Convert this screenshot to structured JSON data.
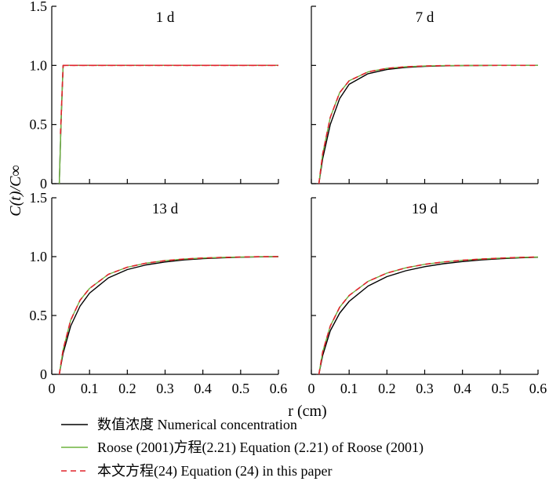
{
  "chart_data": {
    "type": "line",
    "layout": "2x2 panels",
    "xlabel": "r (cm)",
    "ylabel": "C(t)/C∞",
    "xlim": [
      0,
      0.6
    ],
    "ylim": [
      0,
      1.5
    ],
    "xticks": [
      0,
      0.1,
      0.2,
      0.3,
      0.4,
      0.5,
      0.6
    ],
    "xtick_labels": [
      "0",
      "0.1",
      "0.2",
      "0.3",
      "0.4",
      "0.5",
      "0.6"
    ],
    "yticks": [
      0,
      0.5,
      1.0,
      1.5
    ],
    "ytick_labels": [
      "0",
      "0.5",
      "1.0",
      "1.5"
    ],
    "grid": false,
    "legend_position": "bottom",
    "legend": [
      {
        "label": "数值浓度 Numerical concentration",
        "color": "#000000",
        "style": "solid"
      },
      {
        "label": "Roose (2001)方程(2.21) Equation (2.21) of Roose (2001)",
        "color": "#6db33f",
        "style": "solid"
      },
      {
        "label": "本文方程(24) Equation (24) in this paper",
        "color": "#e0242c",
        "style": "dashed"
      }
    ],
    "panels": [
      {
        "title": "1 d",
        "series": [
          {
            "x": [
              0.02,
              0.025,
              0.03,
              0.05,
              0.1,
              0.2,
              0.3,
              0.4,
              0.5,
              0.6
            ],
            "y": [
              0.0,
              0.55,
              1.0,
              1.0,
              1.0,
              1.0,
              1.0,
              1.0,
              1.0,
              1.0
            ]
          },
          {
            "x": [
              0.02,
              0.025,
              0.03,
              0.05,
              0.1,
              0.2,
              0.3,
              0.4,
              0.5,
              0.6
            ],
            "y": [
              0.0,
              0.55,
              1.0,
              1.0,
              1.0,
              1.0,
              1.0,
              1.0,
              1.0,
              1.0
            ]
          },
          {
            "x": [
              0.03,
              0.04,
              0.05,
              0.1,
              0.2,
              0.3,
              0.4,
              0.5,
              0.6
            ],
            "y": [
              1.0,
              1.0,
              1.0,
              1.0,
              1.0,
              1.0,
              1.0,
              1.0,
              1.0
            ]
          },
          {
            "x": [
              0.023,
              0.03,
              0.04,
              0.1,
              0.2,
              0.3,
              0.4,
              0.5,
              0.6
            ],
            "y": [
              0.42,
              1.0,
              1.0,
              1.0,
              1.0,
              1.0,
              1.0,
              1.0,
              1.0
            ]
          }
        ]
      },
      {
        "title": "7 d",
        "series": [
          {
            "x": [
              0.02,
              0.03,
              0.05,
              0.075,
              0.1,
              0.15,
              0.2,
              0.25,
              0.3,
              0.35,
              0.4,
              0.5,
              0.6
            ],
            "y": [
              0.0,
              0.21,
              0.5,
              0.72,
              0.84,
              0.93,
              0.965,
              0.983,
              0.992,
              0.996,
              0.998,
              1.0,
              1.0
            ]
          },
          {
            "x": [
              0.02,
              0.03,
              0.05,
              0.075,
              0.1,
              0.15,
              0.2,
              0.25,
              0.3,
              0.35,
              0.4,
              0.5,
              0.6
            ],
            "y": [
              0.0,
              0.25,
              0.56,
              0.77,
              0.87,
              0.945,
              0.975,
              0.988,
              0.995,
              0.998,
              0.999,
              1.0,
              1.0
            ]
          },
          {
            "x": [
              0.02,
              0.03,
              0.05,
              0.075,
              0.1,
              0.15,
              0.2,
              0.25,
              0.3,
              0.35,
              0.4,
              0.5,
              0.6
            ],
            "y": [
              0.0,
              0.25,
              0.56,
              0.77,
              0.87,
              0.945,
              0.975,
              0.988,
              0.995,
              0.998,
              0.999,
              1.0,
              1.0
            ]
          }
        ]
      },
      {
        "title": "13 d",
        "series": [
          {
            "x": [
              0.02,
              0.03,
              0.05,
              0.075,
              0.1,
              0.15,
              0.2,
              0.25,
              0.3,
              0.35,
              0.4,
              0.45,
              0.5,
              0.55,
              0.6
            ],
            "y": [
              0.0,
              0.18,
              0.41,
              0.58,
              0.69,
              0.82,
              0.89,
              0.93,
              0.955,
              0.972,
              0.983,
              0.99,
              0.995,
              0.998,
              1.0
            ]
          },
          {
            "x": [
              0.02,
              0.03,
              0.05,
              0.075,
              0.1,
              0.15,
              0.2,
              0.25,
              0.3,
              0.35,
              0.4,
              0.45,
              0.5,
              0.55,
              0.6
            ],
            "y": [
              0.0,
              0.21,
              0.46,
              0.63,
              0.73,
              0.85,
              0.91,
              0.945,
              0.966,
              0.979,
              0.988,
              0.993,
              0.997,
              0.999,
              1.0
            ]
          },
          {
            "x": [
              0.02,
              0.03,
              0.05,
              0.075,
              0.1,
              0.15,
              0.2,
              0.25,
              0.3,
              0.35,
              0.4,
              0.45,
              0.5,
              0.55,
              0.6
            ],
            "y": [
              0.0,
              0.21,
              0.46,
              0.63,
              0.73,
              0.85,
              0.91,
              0.945,
              0.966,
              0.979,
              0.988,
              0.993,
              0.997,
              0.999,
              1.0
            ]
          }
        ]
      },
      {
        "title": "19 d",
        "series": [
          {
            "x": [
              0.02,
              0.03,
              0.05,
              0.075,
              0.1,
              0.15,
              0.2,
              0.25,
              0.3,
              0.35,
              0.4,
              0.45,
              0.5,
              0.55,
              0.6
            ],
            "y": [
              0.0,
              0.16,
              0.37,
              0.52,
              0.62,
              0.75,
              0.83,
              0.88,
              0.915,
              0.94,
              0.958,
              0.972,
              0.982,
              0.99,
              0.995
            ]
          },
          {
            "x": [
              0.02,
              0.03,
              0.05,
              0.075,
              0.1,
              0.15,
              0.2,
              0.25,
              0.3,
              0.35,
              0.4,
              0.45,
              0.5,
              0.55,
              0.6
            ],
            "y": [
              0.0,
              0.19,
              0.41,
              0.57,
              0.67,
              0.79,
              0.86,
              0.905,
              0.935,
              0.955,
              0.969,
              0.979,
              0.987,
              0.993,
              0.997
            ]
          },
          {
            "x": [
              0.02,
              0.03,
              0.05,
              0.075,
              0.1,
              0.15,
              0.2,
              0.25,
              0.3,
              0.35,
              0.4,
              0.45,
              0.5,
              0.55,
              0.6
            ],
            "y": [
              0.0,
              0.19,
              0.41,
              0.57,
              0.67,
              0.79,
              0.86,
              0.905,
              0.935,
              0.955,
              0.969,
              0.979,
              0.987,
              0.993,
              0.997
            ]
          }
        ]
      }
    ]
  }
}
